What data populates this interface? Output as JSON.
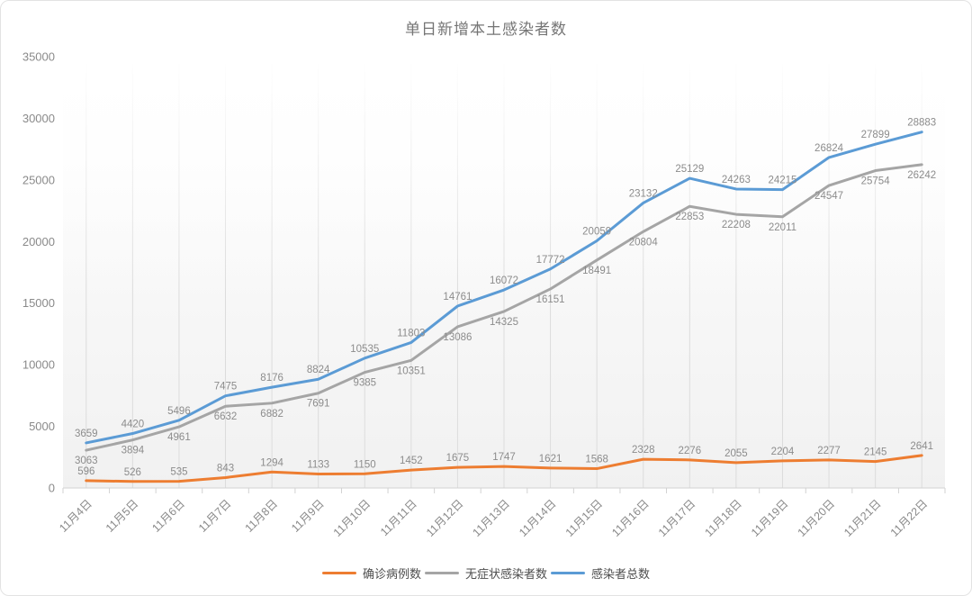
{
  "chart_data": {
    "type": "line",
    "title": "单日新增本土感染者数",
    "xlabel": "",
    "ylabel": "",
    "categories": [
      "11月4日",
      "11月5日",
      "11月6日",
      "11月7日",
      "11月8日",
      "11月9日",
      "11月10日",
      "11月11日",
      "11月12日",
      "11月13日",
      "11月14日",
      "11月15日",
      "11月16日",
      "11月17日",
      "11月18日",
      "11月19日",
      "11月20日",
      "11月21日",
      "11月22日"
    ],
    "series": [
      {
        "name": "确诊病例数",
        "color": "#ED7D31",
        "label_position": "above",
        "values": [
          596,
          526,
          535,
          843,
          1294,
          1133,
          1150,
          1452,
          1675,
          1747,
          1621,
          1568,
          2328,
          2276,
          2055,
          2204,
          2277,
          2145,
          2641
        ]
      },
      {
        "name": "无症状感染者数",
        "color": "#A5A5A5",
        "label_position": "below",
        "values": [
          3063,
          3894,
          4961,
          6632,
          6882,
          7691,
          9385,
          10351,
          13086,
          14325,
          16151,
          18491,
          20804,
          22853,
          22208,
          22011,
          24547,
          25754,
          26242
        ]
      },
      {
        "name": "感染者总数",
        "color": "#5B9BD5",
        "label_position": "above",
        "values": [
          3659,
          4420,
          5496,
          7475,
          8176,
          8824,
          10535,
          11803,
          14761,
          16072,
          17772,
          20059,
          23132,
          25129,
          24263,
          24215,
          26824,
          27899,
          28883
        ]
      }
    ],
    "ylim": [
      0,
      35000
    ],
    "yticks": [
      0,
      5000,
      10000,
      15000,
      20000,
      25000,
      30000,
      35000
    ],
    "grid": "vertical-only",
    "legend_position": "bottom",
    "colors": {
      "axis_line": "#d2d2d2",
      "gridline": "#dcdcdc",
      "tick_label": "#8a8a8a",
      "data_label": "#8c8c8c",
      "title": "#757575",
      "plot_bg_top": "#ffffff",
      "plot_bg_bottom": "#f1f1f1"
    }
  }
}
